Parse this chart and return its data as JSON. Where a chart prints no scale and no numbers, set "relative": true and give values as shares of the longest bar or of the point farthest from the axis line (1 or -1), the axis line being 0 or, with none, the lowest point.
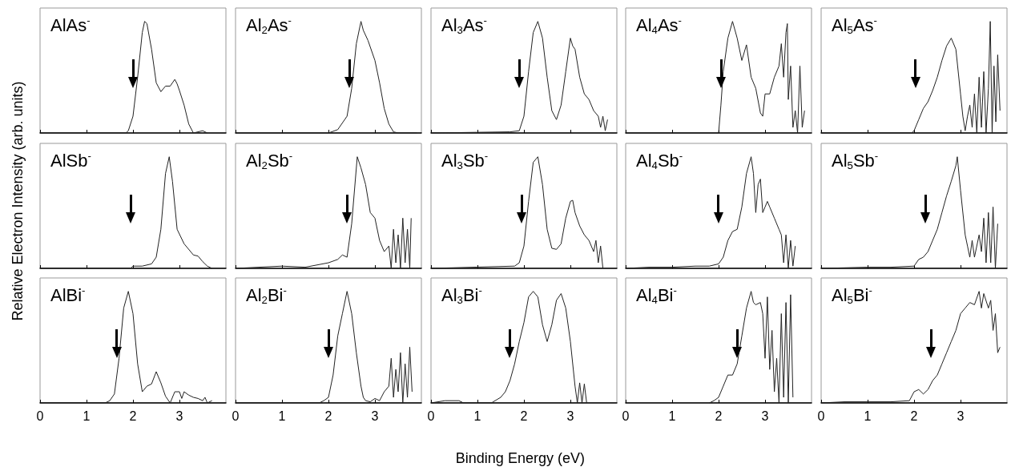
{
  "chart_data": [
    {
      "type": "line",
      "title": "AlAs$^{-}$",
      "ylabel": "Relative Electron Intensity (arb. units)",
      "relative": true,
      "color": "#222222",
      "marker": "none",
      "xlim": [
        0,
        4
      ],
      "xticks": [
        0,
        1,
        2,
        3
      ],
      "tick_labels": false,
      "ref_lines": [
        {
          "axis": "x",
          "value": 2.0
        }
      ],
      "x": [
        0,
        1.85,
        1.9,
        2.0,
        2.1,
        2.2,
        2.25,
        2.3,
        2.4,
        2.5,
        2.6,
        2.7,
        2.8,
        2.9,
        2.95,
        3.0,
        3.1,
        3.2,
        3.3,
        3.5,
        3.6
      ],
      "values": [
        0,
        0,
        0.02,
        0.15,
        0.5,
        0.9,
        1.0,
        0.98,
        0.75,
        0.45,
        0.37,
        0.42,
        0.42,
        0.48,
        0.44,
        0.38,
        0.25,
        0.08,
        0,
        0.02,
        0
      ]
    },
    {
      "type": "line",
      "title": "Al$_{2}$As$^{-}$",
      "relative": true,
      "color": "#222222",
      "marker": "none",
      "xlim": [
        0,
        4
      ],
      "xticks": [
        0,
        1,
        2,
        3
      ],
      "tick_labels": false,
      "ref_lines": [
        {
          "axis": "x",
          "value": 2.45
        }
      ],
      "x": [
        0,
        2.0,
        2.2,
        2.4,
        2.5,
        2.6,
        2.7,
        2.75,
        2.85,
        3.0,
        3.1,
        3.2,
        3.3,
        3.4,
        3.5,
        3.9
      ],
      "values": [
        0,
        0,
        0.03,
        0.15,
        0.4,
        0.8,
        1.0,
        0.92,
        0.83,
        0.65,
        0.45,
        0.22,
        0.08,
        0.01,
        0,
        0
      ]
    },
    {
      "type": "line",
      "title": "Al$_{3}$As$^{-}$",
      "relative": true,
      "color": "#222222",
      "marker": "none",
      "xlim": [
        0,
        4
      ],
      "xticks": [
        0,
        1,
        2,
        3
      ],
      "tick_labels": false,
      "ref_lines": [
        {
          "axis": "x",
          "value": 1.9
        }
      ],
      "x": [
        0,
        1.7,
        1.9,
        2.0,
        2.1,
        2.2,
        2.3,
        2.4,
        2.5,
        2.6,
        2.7,
        2.8,
        2.9,
        3.0,
        3.05,
        3.1,
        3.2,
        3.3,
        3.4,
        3.5,
        3.6,
        3.65,
        3.7,
        3.75,
        3.8
      ],
      "values": [
        0,
        0.01,
        0.02,
        0.15,
        0.55,
        0.9,
        1.0,
        0.85,
        0.5,
        0.2,
        0.12,
        0.25,
        0.55,
        0.85,
        0.78,
        0.75,
        0.5,
        0.35,
        0.3,
        0.2,
        0.15,
        0.05,
        0.15,
        0.02,
        0.12
      ]
    },
    {
      "type": "line",
      "title": "Al$_{4}$As$^{-}$",
      "relative": true,
      "color": "#222222",
      "marker": "none",
      "xlim": [
        0,
        4
      ],
      "xticks": [
        0,
        1,
        2,
        3
      ],
      "tick_labels": false,
      "ref_lines": [
        {
          "axis": "x",
          "value": 2.05
        }
      ],
      "x": [
        0,
        2.0,
        2.05,
        2.1,
        2.2,
        2.3,
        2.4,
        2.5,
        2.6,
        2.7,
        2.8,
        2.9,
        2.95,
        3.0,
        3.1,
        3.2,
        3.3,
        3.35,
        3.4,
        3.45,
        3.48,
        3.5,
        3.55,
        3.6,
        3.65,
        3.7,
        3.75,
        3.8,
        3.85
      ],
      "values": [
        0,
        0,
        0.25,
        0.55,
        0.85,
        1.0,
        0.85,
        0.65,
        0.79,
        0.5,
        0.4,
        0.18,
        0.15,
        0.35,
        0.35,
        0.5,
        0.6,
        0.8,
        0.5,
        0.9,
        0.98,
        0.3,
        0.6,
        0.05,
        0.2,
        0,
        0.6,
        0.05,
        0.2
      ]
    },
    {
      "type": "line",
      "title": "Al$_{5}$As$^{-}$",
      "relative": true,
      "color": "#222222",
      "marker": "none",
      "xlim": [
        0,
        4
      ],
      "xticks": [
        0,
        1,
        2,
        3
      ],
      "tick_labels": false,
      "ref_lines": [
        {
          "axis": "x",
          "value": 2.03
        }
      ],
      "x": [
        0,
        1.95,
        2.0,
        2.1,
        2.2,
        2.3,
        2.4,
        2.5,
        2.6,
        2.7,
        2.8,
        2.9,
        3.0,
        3.05,
        3.1,
        3.15,
        3.2,
        3.25,
        3.3,
        3.35,
        3.4,
        3.45,
        3.5,
        3.55,
        3.6,
        3.64,
        3.68,
        3.72,
        3.76,
        3.8,
        3.85
      ],
      "values": [
        0,
        0,
        0.02,
        0.12,
        0.22,
        0.28,
        0.38,
        0.5,
        0.65,
        0.78,
        0.85,
        0.75,
        0.35,
        0.15,
        0.02,
        0.15,
        0.25,
        0.05,
        0.35,
        0,
        0.5,
        0.05,
        0.55,
        0,
        0.4,
        1.0,
        0,
        0.6,
        0.1,
        0.7,
        0.2
      ]
    },
    {
      "type": "line",
      "title": "AlSb$^{-}$",
      "relative": true,
      "color": "#222222",
      "marker": "none",
      "xlim": [
        0,
        4
      ],
      "xticks": [
        0,
        1,
        2,
        3
      ],
      "tick_labels": false,
      "ref_lines": [
        {
          "axis": "x",
          "value": 1.95
        }
      ],
      "x": [
        0,
        1.95,
        2.0,
        2.2,
        2.4,
        2.5,
        2.6,
        2.7,
        2.78,
        2.85,
        2.95,
        3.1,
        3.3,
        3.4,
        3.5,
        3.6,
        3.7
      ],
      "values": [
        0,
        0,
        0.02,
        0.02,
        0.04,
        0.1,
        0.35,
        0.85,
        1.0,
        0.78,
        0.35,
        0.22,
        0.12,
        0.11,
        0.06,
        0.02,
        0
      ]
    },
    {
      "type": "line",
      "title": "Al$_{2}$Sb$^{-}$",
      "relative": true,
      "color": "#222222",
      "marker": "none",
      "xlim": [
        0,
        4
      ],
      "xticks": [
        0,
        1,
        2,
        3
      ],
      "tick_labels": false,
      "ref_lines": [
        {
          "axis": "x",
          "value": 2.4
        }
      ],
      "x": [
        0,
        0.5,
        1.0,
        1.5,
        2.0,
        2.2,
        2.3,
        2.4,
        2.5,
        2.62,
        2.7,
        2.8,
        2.9,
        3.0,
        3.1,
        3.2,
        3.3,
        3.35,
        3.4,
        3.45,
        3.5,
        3.55,
        3.6,
        3.65,
        3.7,
        3.75,
        3.78
      ],
      "values": [
        0,
        0.01,
        0.02,
        0.01,
        0.05,
        0.08,
        0.12,
        0.1,
        0.4,
        1.0,
        0.9,
        0.75,
        0.5,
        0.45,
        0.25,
        0.15,
        0.2,
        0,
        0.35,
        0.05,
        0.3,
        0,
        0.45,
        0.05,
        0.35,
        0,
        0.45
      ]
    },
    {
      "type": "line",
      "title": "Al$_{3}$Sb$^{-}$",
      "relative": true,
      "color": "#222222",
      "marker": "none",
      "xlim": [
        0,
        4
      ],
      "xticks": [
        0,
        1,
        2,
        3
      ],
      "tick_labels": false,
      "ref_lines": [
        {
          "axis": "x",
          "value": 1.95
        }
      ],
      "x": [
        0,
        1.8,
        1.9,
        2.0,
        2.1,
        2.2,
        2.3,
        2.4,
        2.5,
        2.6,
        2.7,
        2.8,
        2.9,
        3.0,
        3.05,
        3.1,
        3.2,
        3.3,
        3.4,
        3.5,
        3.55,
        3.6,
        3.65,
        3.7
      ],
      "values": [
        0,
        0.02,
        0.05,
        0.2,
        0.6,
        0.95,
        1.0,
        0.75,
        0.35,
        0.18,
        0.17,
        0.22,
        0.45,
        0.6,
        0.61,
        0.5,
        0.38,
        0.3,
        0.25,
        0.15,
        0.25,
        0.05,
        0.2,
        0
      ]
    },
    {
      "type": "line",
      "title": "Al$_{4}$Sb$^{-}$",
      "relative": true,
      "color": "#222222",
      "marker": "none",
      "xlim": [
        0,
        4
      ],
      "xticks": [
        0,
        1,
        2,
        3
      ],
      "tick_labels": false,
      "ref_lines": [
        {
          "axis": "x",
          "value": 1.99
        }
      ],
      "x": [
        0,
        0.5,
        1.0,
        1.5,
        1.8,
        2.0,
        2.1,
        2.2,
        2.3,
        2.4,
        2.5,
        2.6,
        2.7,
        2.75,
        2.8,
        2.85,
        2.9,
        2.95,
        3.0,
        3.05,
        3.1,
        3.2,
        3.3,
        3.35,
        3.4,
        3.45,
        3.5,
        3.55,
        3.6,
        3.65
      ],
      "values": [
        0,
        0.01,
        0.01,
        0.02,
        0.02,
        0.04,
        0.1,
        0.25,
        0.33,
        0.35,
        0.55,
        0.85,
        1.0,
        0.85,
        0.5,
        0.75,
        0.8,
        0.5,
        0.55,
        0.6,
        0.55,
        0.45,
        0.35,
        0.3,
        0.05,
        0.3,
        0,
        0.25,
        0.02,
        0.2
      ]
    },
    {
      "type": "line",
      "title": "Al$_{5}$Sb$^{-}$",
      "relative": true,
      "color": "#222222",
      "marker": "none",
      "xlim": [
        0,
        4
      ],
      "xticks": [
        0,
        1,
        2,
        3
      ],
      "tick_labels": false,
      "ref_lines": [
        {
          "axis": "x",
          "value": 2.24
        }
      ],
      "x": [
        0,
        1.0,
        1.5,
        2.0,
        2.1,
        2.2,
        2.3,
        2.4,
        2.5,
        2.6,
        2.7,
        2.8,
        2.9,
        2.93,
        3.0,
        3.1,
        3.15,
        3.2,
        3.25,
        3.3,
        3.4,
        3.45,
        3.5,
        3.55,
        3.6,
        3.65,
        3.7,
        3.75,
        3.8
      ],
      "values": [
        0,
        0.01,
        0.01,
        0.02,
        0.08,
        0.1,
        0.15,
        0.25,
        0.35,
        0.5,
        0.65,
        0.78,
        0.92,
        1.0,
        0.7,
        0.3,
        0.2,
        0.1,
        0.25,
        0.1,
        0.3,
        0.15,
        0.45,
        0.05,
        0.5,
        0.05,
        0.55,
        0,
        0.4
      ]
    },
    {
      "type": "line",
      "title": "AlBi$^{-}$",
      "relative": true,
      "color": "#222222",
      "marker": "none",
      "xlim": [
        0,
        4
      ],
      "xticks": [
        0,
        1,
        2,
        3
      ],
      "tick_labels": "x",
      "ref_lines": [
        {
          "axis": "x",
          "value": 1.65
        }
      ],
      "x": [
        0,
        1.4,
        1.5,
        1.6,
        1.7,
        1.8,
        1.9,
        2.0,
        2.1,
        2.2,
        2.3,
        2.4,
        2.5,
        2.6,
        2.7,
        2.8,
        2.9,
        3.0,
        3.05,
        3.1,
        3.2,
        3.3,
        3.4,
        3.5,
        3.55,
        3.6,
        3.7
      ],
      "values": [
        0,
        0,
        0.02,
        0.08,
        0.4,
        0.85,
        1.0,
        0.8,
        0.35,
        0.1,
        0.15,
        0.17,
        0.28,
        0.18,
        0.06,
        0,
        0.1,
        0.1,
        0.04,
        0.1,
        0.07,
        0.05,
        0.04,
        0.02,
        0.05,
        0,
        0.02
      ]
    },
    {
      "type": "line",
      "title": "Al$_{2}$Bi$^{-}$",
      "relative": true,
      "color": "#222222",
      "marker": "none",
      "xlim": [
        0,
        4
      ],
      "xticks": [
        0,
        1,
        2,
        3
      ],
      "tick_labels": "x",
      "ref_lines": [
        {
          "axis": "x",
          "value": 2.0
        }
      ],
      "x": [
        0,
        1.8,
        1.9,
        2.0,
        2.1,
        2.2,
        2.3,
        2.4,
        2.5,
        2.6,
        2.7,
        2.75,
        2.8,
        2.9,
        3.0,
        3.1,
        3.2,
        3.3,
        3.35,
        3.4,
        3.45,
        3.5,
        3.55,
        3.6,
        3.65,
        3.7,
        3.75,
        3.8
      ],
      "values": [
        0,
        0,
        0.02,
        0.05,
        0.25,
        0.6,
        0.8,
        1.0,
        0.8,
        0.45,
        0.15,
        0.05,
        0.02,
        0.01,
        0.04,
        0.02,
        0.1,
        0.15,
        0.4,
        0.05,
        0.3,
        0.1,
        0.45,
        0,
        0.35,
        0.05,
        0.5,
        0.1
      ]
    },
    {
      "type": "line",
      "title": "Al$_{3}$Bi$^{-}$",
      "xlabel": "Binding Energy (eV)",
      "relative": true,
      "color": "#222222",
      "marker": "none",
      "xlim": [
        0,
        4
      ],
      "xticks": [
        0,
        1,
        2,
        3
      ],
      "tick_labels": "x",
      "ref_lines": [
        {
          "axis": "x",
          "value": 1.69
        }
      ],
      "x": [
        0,
        0.3,
        0.6,
        0.7,
        1.3,
        1.5,
        1.6,
        1.7,
        1.8,
        1.9,
        2.0,
        2.1,
        2.2,
        2.3,
        2.4,
        2.5,
        2.6,
        2.7,
        2.8,
        2.9,
        3.0,
        3.1,
        3.15,
        3.2,
        3.25,
        3.3,
        3.35
      ],
      "values": [
        0,
        0.02,
        0.02,
        0,
        0,
        0.05,
        0.1,
        0.2,
        0.35,
        0.55,
        0.72,
        0.95,
        1.0,
        0.95,
        0.7,
        0.55,
        0.7,
        0.92,
        0.98,
        0.85,
        0.55,
        0.15,
        0,
        0.18,
        0,
        0.17,
        0
      ]
    },
    {
      "type": "line",
      "title": "Al$_{4}$Bi$^{-}$",
      "relative": true,
      "color": "#222222",
      "marker": "none",
      "xlim": [
        0,
        4
      ],
      "xticks": [
        0,
        1,
        2,
        3
      ],
      "tick_labels": "x",
      "ref_lines": [
        {
          "axis": "x",
          "value": 2.4
        }
      ],
      "x": [
        1.8,
        1.9,
        2.0,
        2.1,
        2.2,
        2.3,
        2.4,
        2.5,
        2.6,
        2.7,
        2.75,
        2.8,
        2.9,
        2.95,
        3.0,
        3.05,
        3.1,
        3.15,
        3.2,
        3.25,
        3.3,
        3.35,
        3.4,
        3.45,
        3.5,
        3.55,
        3.6
      ],
      "values": [
        0,
        0.02,
        0.05,
        0.15,
        0.25,
        0.25,
        0.35,
        0.6,
        0.85,
        1.0,
        0.9,
        0.88,
        0.9,
        0.8,
        0.4,
        0.95,
        0.3,
        0.65,
        0.1,
        0.4,
        0,
        0.8,
        0.05,
        0.9,
        0,
        0.97,
        0.05
      ]
    },
    {
      "type": "line",
      "title": "Al$_{5}$Bi$^{-}$",
      "relative": true,
      "color": "#222222",
      "marker": "none",
      "xlim": [
        0,
        4
      ],
      "xticks": [
        0,
        1,
        2,
        3
      ],
      "tick_labels": "x",
      "ref_lines": [
        {
          "axis": "x",
          "value": 2.36
        }
      ],
      "x": [
        0,
        0.5,
        1.0,
        1.5,
        1.9,
        2.0,
        2.1,
        2.2,
        2.3,
        2.4,
        2.5,
        2.6,
        2.7,
        2.8,
        2.9,
        3.0,
        3.1,
        3.2,
        3.3,
        3.4,
        3.45,
        3.5,
        3.6,
        3.65,
        3.7,
        3.75,
        3.8,
        3.85
      ],
      "values": [
        0,
        0.01,
        0.01,
        0.01,
        0.02,
        0.1,
        0.12,
        0.08,
        0.12,
        0.2,
        0.25,
        0.35,
        0.45,
        0.55,
        0.65,
        0.8,
        0.85,
        0.9,
        0.88,
        1.0,
        0.85,
        0.98,
        0.85,
        0.92,
        0.65,
        0.8,
        0.45,
        0.5
      ]
    }
  ]
}
